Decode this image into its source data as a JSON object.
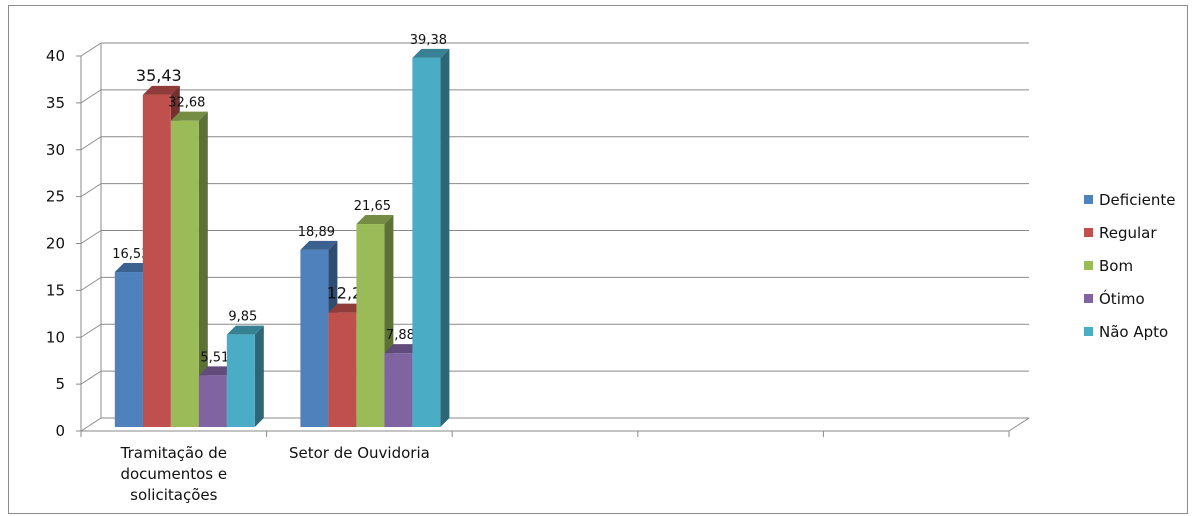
{
  "chart_data": {
    "type": "bar",
    "categories": [
      "Tramitação de documentos e solicitações",
      "Setor de Ouvidoria"
    ],
    "category_label_lines": [
      [
        "Tramitação de",
        "documentos e",
        "solicitações"
      ],
      [
        "Setor de Ouvidoria"
      ]
    ],
    "extra_empty_category_slots": 3,
    "series": [
      {
        "name": "Deficiente",
        "values": [
          16.53,
          18.89
        ],
        "labels": [
          "16,53",
          "18,89"
        ],
        "color": "#4F81BD"
      },
      {
        "name": "Regular",
        "values": [
          35.43,
          12.2
        ],
        "labels": [
          "35,43",
          "12,2"
        ],
        "color": "#C0504D"
      },
      {
        "name": "Bom",
        "values": [
          32.68,
          21.65
        ],
        "labels": [
          "32,68",
          "21,65"
        ],
        "color": "#9BBB59"
      },
      {
        "name": "Ótimo",
        "values": [
          5.51,
          7.88
        ],
        "labels": [
          "5,51",
          "7,88"
        ],
        "color": "#8064A2"
      },
      {
        "name": "Não Apto",
        "values": [
          9.85,
          39.38
        ],
        "labels": [
          "9,85",
          "39,38"
        ],
        "color": "#4BACC6"
      }
    ],
    "ylim": [
      0,
      40
    ],
    "yticks": [
      0,
      5,
      10,
      15,
      20,
      25,
      30,
      35,
      40
    ],
    "title": "",
    "xlabel": "",
    "ylabel": "",
    "grid": true,
    "legend": "right"
  }
}
